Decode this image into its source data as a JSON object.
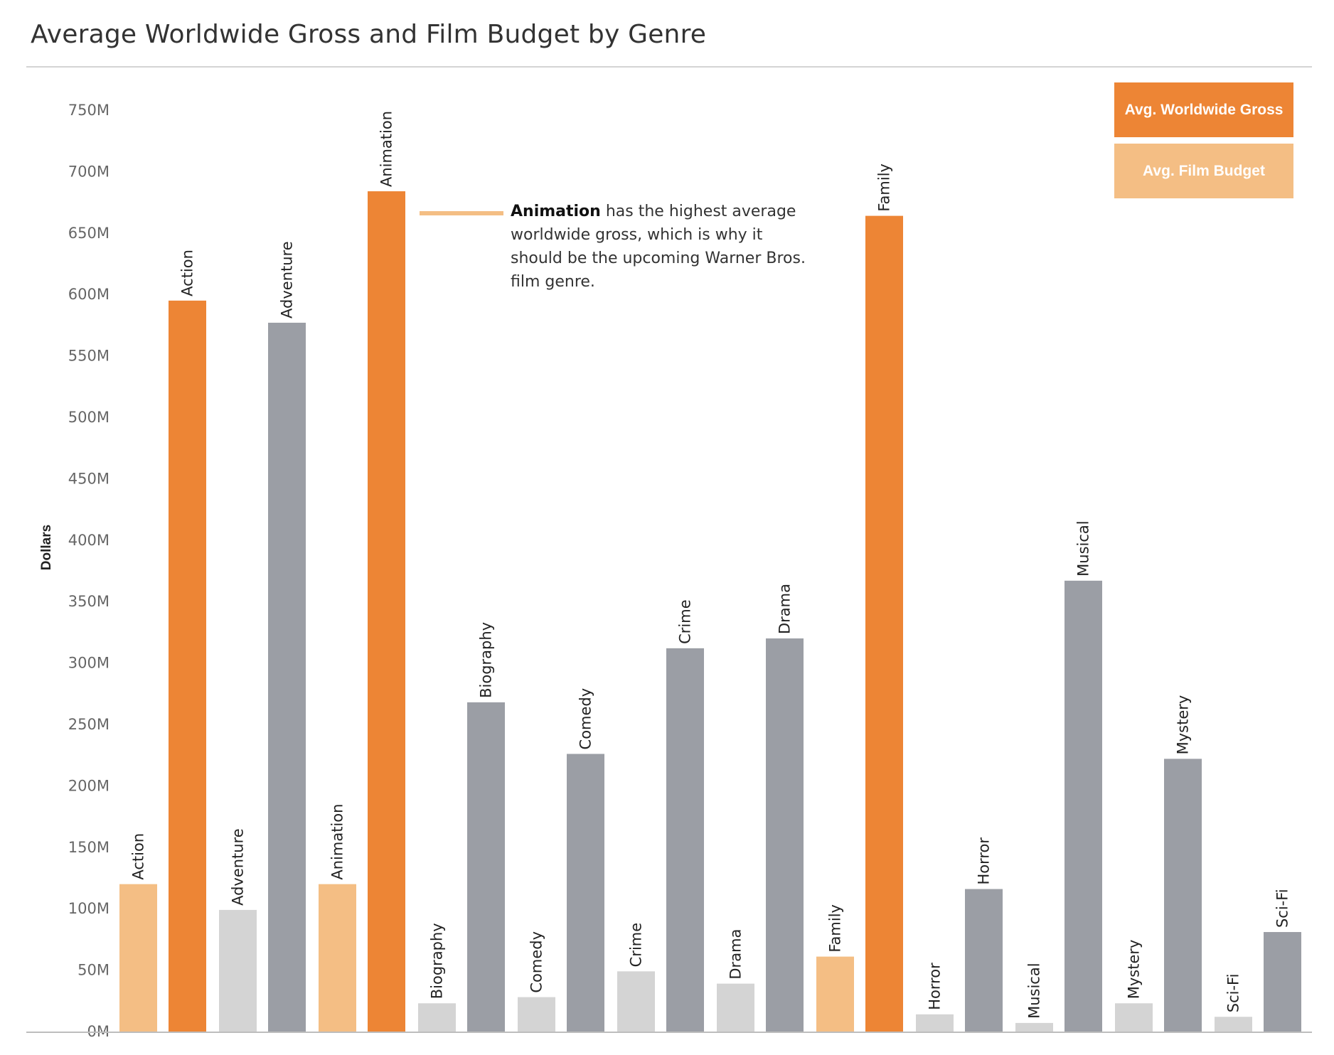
{
  "chart_data": {
    "type": "bar",
    "title": "Average Worldwide Gross and Film Budget by Genre",
    "ylabel": "Dollars",
    "xlabel": "",
    "ylim": [
      0,
      750000000
    ],
    "y_ticks": [
      {
        "value": 0,
        "label": "0M"
      },
      {
        "value": 50000000,
        "label": "50M"
      },
      {
        "value": 100000000,
        "label": "100M"
      },
      {
        "value": 150000000,
        "label": "150M"
      },
      {
        "value": 200000000,
        "label": "200M"
      },
      {
        "value": 250000000,
        "label": "250M"
      },
      {
        "value": 300000000,
        "label": "300M"
      },
      {
        "value": 350000000,
        "label": "350M"
      },
      {
        "value": 400000000,
        "label": "400M"
      },
      {
        "value": 450000000,
        "label": "450M"
      },
      {
        "value": 500000000,
        "label": "500M"
      },
      {
        "value": 550000000,
        "label": "550M"
      },
      {
        "value": 600000000,
        "label": "600M"
      },
      {
        "value": 650000000,
        "label": "650M"
      },
      {
        "value": 700000000,
        "label": "700M"
      },
      {
        "value": 750000000,
        "label": "750M"
      }
    ],
    "categories": [
      "Action",
      "Adventure",
      "Animation",
      "Biography",
      "Comedy",
      "Crime",
      "Drama",
      "Family",
      "Horror",
      "Musical",
      "Mystery",
      "Sci-Fi"
    ],
    "series": [
      {
        "name": "Avg. Film Budget",
        "values": [
          120000000,
          99000000,
          120000000,
          23000000,
          28000000,
          49000000,
          39000000,
          61000000,
          14000000,
          7000000,
          23000000,
          12000000
        ]
      },
      {
        "name": "Avg. Worldwide Gross",
        "values": [
          595000000,
          577000000,
          684000000,
          268000000,
          226000000,
          312000000,
          320000000,
          664000000,
          116000000,
          367000000,
          222000000,
          81000000
        ]
      }
    ],
    "highlighted": [
      "Action",
      "Animation",
      "Family"
    ],
    "legend": {
      "placement": "top-right"
    },
    "grid": false,
    "annotation": {
      "bold": "Animation",
      "text": " has the highest average worldwide gross, which is why it should be the upcoming Warner Bros. film genre."
    },
    "colors": {
      "gross_highlight": "#ed8535",
      "budget_highlight": "#f4be84",
      "gross_other": "#9b9ea5",
      "budget_other": "#d4d4d4"
    }
  }
}
